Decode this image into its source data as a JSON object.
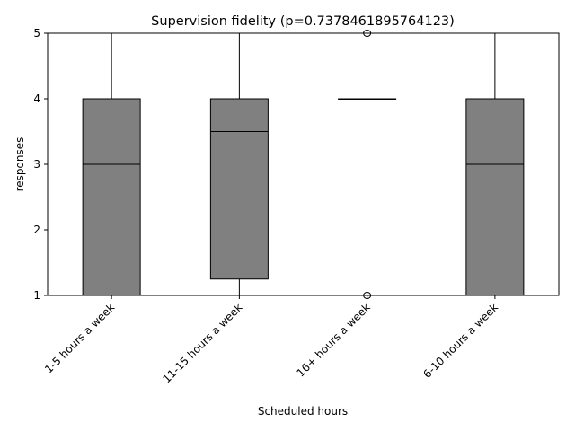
{
  "chart_data": {
    "type": "box",
    "title": "Supervision fidelity (p=0.7378461895764123)",
    "xlabel": "Scheduled hours",
    "ylabel": "responses",
    "ylim": [
      1,
      5
    ],
    "yticks": [
      "1",
      "2",
      "3",
      "4",
      "5"
    ],
    "grid": false,
    "box_color": "#808080",
    "categories": [
      "1-5 hours a week",
      "11-15 hours a week",
      "16+ hours a week",
      "6-10 hours a week"
    ],
    "boxes": [
      {
        "whisker_low": 1,
        "q1": 1,
        "median": 3,
        "q3": 4,
        "whisker_high": 5,
        "fliers": []
      },
      {
        "whisker_low": 1,
        "q1": 1.25,
        "median": 3.5,
        "q3": 4,
        "whisker_high": 5,
        "fliers": []
      },
      {
        "whisker_low": 4,
        "q1": 4,
        "median": 4,
        "q3": 4,
        "whisker_high": 4,
        "fliers": [
          1,
          5
        ]
      },
      {
        "whisker_low": 1,
        "q1": 1,
        "median": 3,
        "q3": 4,
        "whisker_high": 5,
        "fliers": []
      }
    ]
  }
}
